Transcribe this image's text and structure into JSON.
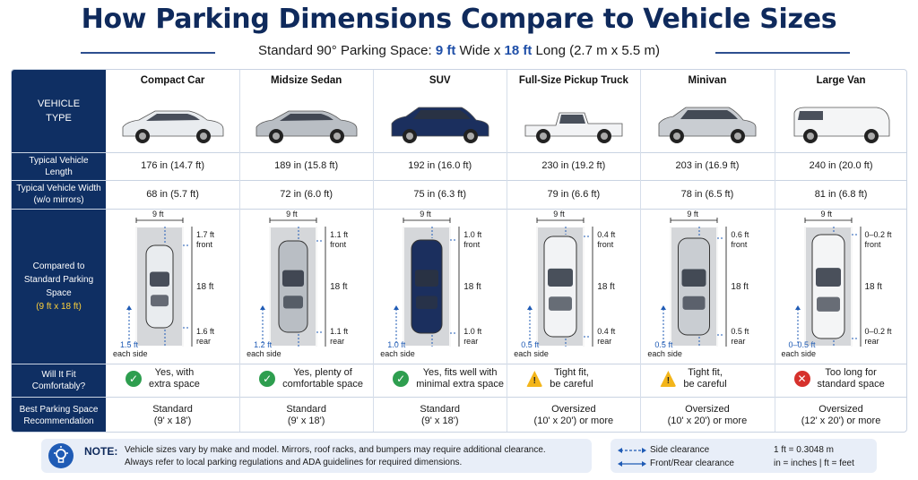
{
  "title": "How Parking Dimensions Compare to Vehicle Sizes",
  "subtitle": {
    "prefix": "Standard 90° Parking Space: ",
    "width": "9 ft",
    "mid": " Wide x ",
    "length": "18 ft",
    "suffix": " Long (2.7 m x 5.5 m)"
  },
  "row_labels": {
    "vehicle_type": "VEHICLE TYPE",
    "length": "Typical Vehicle Length",
    "width": "Typical Vehicle Width (w/o mirrors)",
    "compared_1": "Compared to Standard Parking Space",
    "compared_2": "(9 ft x 18 ft)",
    "fit": "Will It Fit Comfortably?",
    "recommend": "Best Parking Space Recommendation"
  },
  "vehicles": [
    {
      "name": "Compact Car",
      "length": "176 in (14.7 ft)",
      "width": "68 in (5.7 ft)",
      "space_width": "9 ft",
      "front": "1.7 ft",
      "front_word": "front",
      "mid": "18 ft",
      "rear": "1.6 ft",
      "rear_word": "rear",
      "side": "1.5 ft",
      "side_word": "each side",
      "fit_status": "ok",
      "fit_1": "Yes, with",
      "fit_2": "extra space",
      "rec_1": "Standard",
      "rec_2": "(9' x 18')",
      "color": "#e9ecef"
    },
    {
      "name": "Midsize Sedan",
      "length": "189 in (15.8 ft)",
      "width": "72 in (6.0 ft)",
      "space_width": "9 ft",
      "front": "1.1 ft",
      "front_word": "front",
      "mid": "18 ft",
      "rear": "1.1 ft",
      "rear_word": "rear",
      "side": "1.2 ft",
      "side_word": "each side",
      "fit_status": "ok",
      "fit_1": "Yes, plenty of",
      "fit_2": "comfortable space",
      "rec_1": "Standard",
      "rec_2": "(9' x 18')",
      "color": "#b9bec4"
    },
    {
      "name": "SUV",
      "length": "192 in (16.0 ft)",
      "width": "75 in (6.3 ft)",
      "space_width": "9 ft",
      "front": "1.0 ft",
      "front_word": "front",
      "mid": "18 ft",
      "rear": "1.0 ft",
      "rear_word": "rear",
      "side": "1.0 ft",
      "side_word": "each side",
      "fit_status": "ok",
      "fit_1": "Yes, fits well with",
      "fit_2": "minimal extra space",
      "rec_1": "Standard",
      "rec_2": "(9' x 18')",
      "color": "#1b2f5e"
    },
    {
      "name": "Full-Size Pickup Truck",
      "length": "230 in (19.2 ft)",
      "width": "79 in (6.6 ft)",
      "space_width": "9 ft",
      "front": "0.4 ft",
      "front_word": "front",
      "mid": "18 ft",
      "rear": "0.4 ft",
      "rear_word": "rear",
      "side": "0.5 ft",
      "side_word": "each side",
      "fit_status": "warn",
      "fit_1": "Tight fit,",
      "fit_2": "be careful",
      "rec_1": "Oversized",
      "rec_2": "(10' x 20') or more",
      "color": "#f2f3f5"
    },
    {
      "name": "Minivan",
      "length": "203 in (16.9 ft)",
      "width": "78 in (6.5 ft)",
      "space_width": "9 ft",
      "front": "0.6 ft",
      "front_word": "front",
      "mid": "18 ft",
      "rear": "0.5 ft",
      "rear_word": "rear",
      "side": "0.5 ft",
      "side_word": "each side",
      "fit_status": "warn",
      "fit_1": "Tight fit,",
      "fit_2": "be careful",
      "rec_1": "Oversized",
      "rec_2": "(10' x 20') or more",
      "color": "#c9cdd2"
    },
    {
      "name": "Large Van",
      "length": "240 in (20.0 ft)",
      "width": "81 in (6.8 ft)",
      "space_width": "9 ft",
      "front": "0–0.2 ft",
      "front_word": "front",
      "mid": "18 ft",
      "rear": "0–0.2 ft",
      "rear_word": "rear",
      "side": "0–0.5 ft",
      "side_word": "each side",
      "fit_status": "no",
      "fit_1": "Too long for",
      "fit_2": "standard space",
      "rec_1": "Oversized",
      "rec_2": "(12' x 20') or more",
      "color": "#f4f5f6"
    }
  ],
  "status_colors": {
    "ok": "#2e9e4f",
    "warn": "#f3b51a",
    "no": "#d6312c"
  },
  "note": {
    "label": "NOTE:",
    "line1": "Vehicle sizes vary by make and model. Mirrors, roof racks, and bumpers may require additional clearance.",
    "line2": "Always refer to local parking regulations and ADA guidelines for required dimensions.",
    "icon": "lightbulb-icon"
  },
  "legend": {
    "side": "Side clearance",
    "front_rear": "Front/Rear clearance",
    "conv1": "1 ft = 0.3048 m",
    "conv2": "in = inches | ft = feet"
  }
}
